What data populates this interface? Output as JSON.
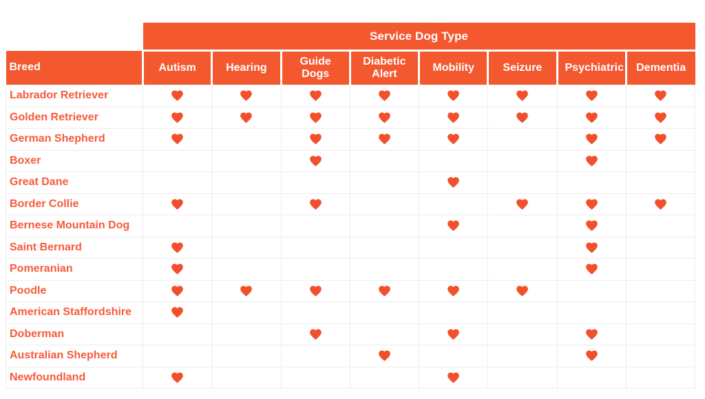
{
  "palette": {
    "header_bg": "#F4582F",
    "header_text": "#FFFFFF",
    "breed_text": "#F75A3A",
    "heart": "#F2502C",
    "grid_line": "#ECECEC"
  },
  "icons": {
    "filled_cell": "heart-icon",
    "filled_cell_glyph": "♥"
  },
  "chart_data": {
    "type": "table",
    "title": "Service Dog Type",
    "group_header": "Service Dog Type",
    "row_header": "Breed",
    "marker": "heart",
    "columns": [
      "Autism",
      "Hearing",
      "Guide Dogs",
      "Diabetic Alert",
      "Mobility",
      "Seizure",
      "Psychiatric",
      "Dementia"
    ],
    "rows": [
      {
        "breed": "Labrador Retriever",
        "values": [
          1,
          1,
          1,
          1,
          1,
          1,
          1,
          1
        ]
      },
      {
        "breed": "Golden Retriever",
        "values": [
          1,
          1,
          1,
          1,
          1,
          1,
          1,
          1
        ]
      },
      {
        "breed": "German Shepherd",
        "values": [
          1,
          0,
          1,
          1,
          1,
          0,
          1,
          1
        ]
      },
      {
        "breed": "Boxer",
        "values": [
          0,
          0,
          1,
          0,
          0,
          0,
          1,
          0
        ]
      },
      {
        "breed": "Great Dane",
        "values": [
          0,
          0,
          0,
          0,
          1,
          0,
          0,
          0
        ]
      },
      {
        "breed": "Border Collie",
        "values": [
          1,
          0,
          1,
          0,
          0,
          1,
          1,
          1
        ]
      },
      {
        "breed": "Bernese Mountain Dog",
        "values": [
          0,
          0,
          0,
          0,
          1,
          0,
          1,
          0
        ]
      },
      {
        "breed": "Saint Bernard",
        "values": [
          1,
          0,
          0,
          0,
          0,
          0,
          1,
          0
        ]
      },
      {
        "breed": "Pomeranian",
        "values": [
          1,
          0,
          0,
          0,
          0,
          0,
          1,
          0
        ]
      },
      {
        "breed": "Poodle",
        "values": [
          1,
          1,
          1,
          1,
          1,
          1,
          0,
          0
        ]
      },
      {
        "breed": "American Staffordshire",
        "values": [
          1,
          0,
          0,
          0,
          0,
          0,
          0,
          0
        ]
      },
      {
        "breed": "Doberman",
        "values": [
          0,
          0,
          1,
          0,
          1,
          0,
          1,
          0
        ]
      },
      {
        "breed": "Australian Shepherd",
        "values": [
          0,
          0,
          0,
          1,
          0,
          0,
          1,
          0
        ]
      },
      {
        "breed": "Newfoundland",
        "values": [
          1,
          0,
          0,
          0,
          1,
          0,
          0,
          0
        ]
      }
    ]
  }
}
